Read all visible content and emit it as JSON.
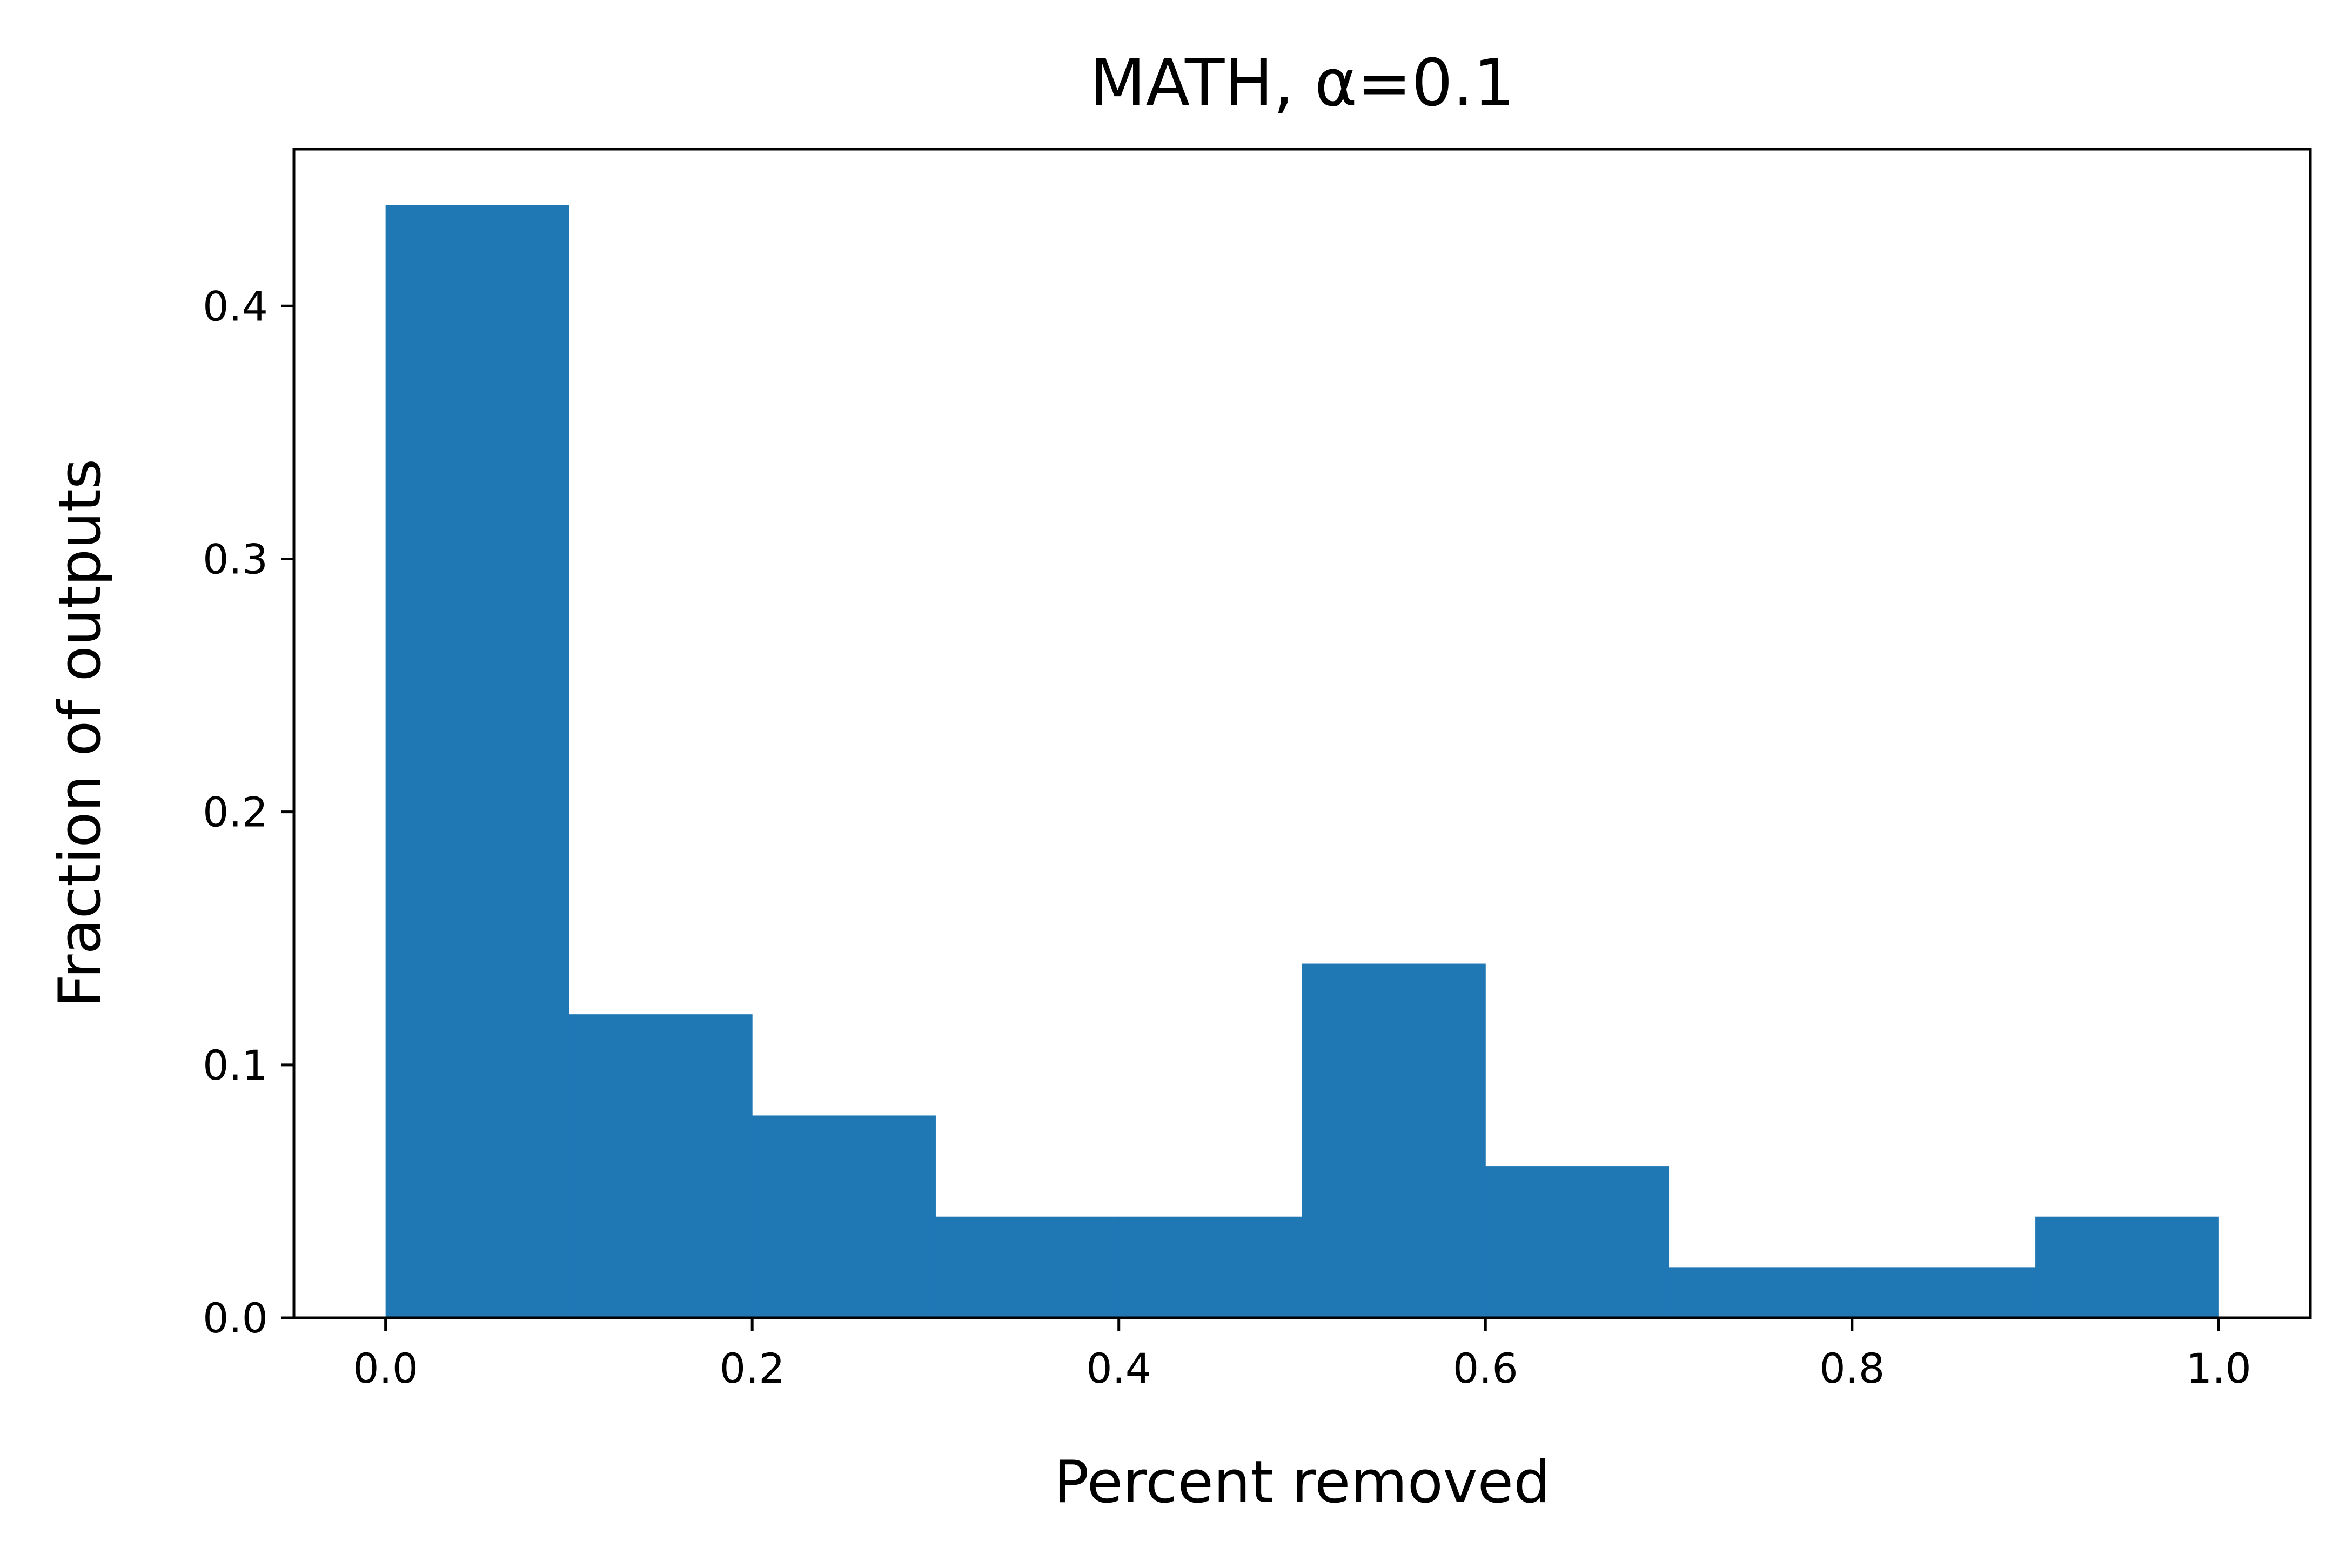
{
  "chart_data": {
    "type": "bar",
    "title": "MATH, α=0.1",
    "xlabel": "Percent removed",
    "ylabel": "Fraction of outputs",
    "bins": [
      {
        "x0": 0.0,
        "x1": 0.1,
        "value": 0.44
      },
      {
        "x0": 0.1,
        "x1": 0.2,
        "value": 0.12
      },
      {
        "x0": 0.2,
        "x1": 0.3,
        "value": 0.08
      },
      {
        "x0": 0.3,
        "x1": 0.4,
        "value": 0.04
      },
      {
        "x0": 0.4,
        "x1": 0.5,
        "value": 0.04
      },
      {
        "x0": 0.5,
        "x1": 0.6,
        "value": 0.14
      },
      {
        "x0": 0.6,
        "x1": 0.7,
        "value": 0.06
      },
      {
        "x0": 0.7,
        "x1": 0.8,
        "value": 0.02
      },
      {
        "x0": 0.8,
        "x1": 0.9,
        "value": 0.02
      },
      {
        "x0": 0.9,
        "x1": 1.0,
        "value": 0.04
      }
    ],
    "xlim": [
      -0.05,
      1.05
    ],
    "ylim": [
      0,
      0.462
    ],
    "xticks": [
      0.0,
      0.2,
      0.4,
      0.6,
      0.8,
      1.0
    ],
    "xtick_labels": [
      "0.0",
      "0.2",
      "0.4",
      "0.6",
      "0.8",
      "1.0"
    ],
    "yticks": [
      0.0,
      0.1,
      0.2,
      0.3,
      0.4
    ],
    "ytick_labels": [
      "0.0",
      "0.1",
      "0.2",
      "0.3",
      "0.4"
    ],
    "bar_color": "#1f77b4",
    "grid": false,
    "legend": "none"
  }
}
